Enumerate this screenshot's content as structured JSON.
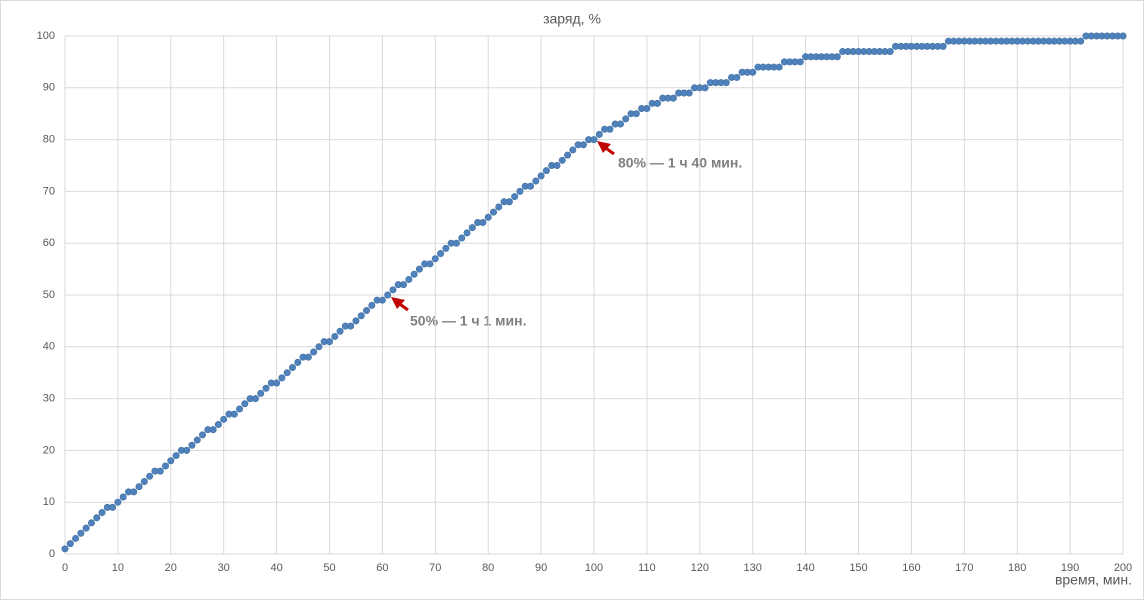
{
  "chart_data": {
    "type": "scatter",
    "title": "заряд, %",
    "x_label": "время, мин.",
    "annotations": [
      "80% — 1 ч 40 мин.",
      "50% — 1 ч 1 мин."
    ],
    "series": [
      {
        "name": "заряд",
        "color": "#4f81bd",
        "x": [
          0,
          1,
          2,
          3,
          4,
          5,
          6,
          7,
          8,
          9,
          10,
          11,
          12,
          13,
          14,
          15,
          16,
          17,
          18,
          19,
          20,
          21,
          22,
          23,
          24,
          25,
          26,
          27,
          28,
          29,
          30,
          31,
          32,
          33,
          34,
          35,
          36,
          37,
          38,
          39,
          40,
          41,
          42,
          43,
          44,
          45,
          46,
          47,
          48,
          49,
          50,
          51,
          52,
          53,
          54,
          55,
          56,
          57,
          58,
          59,
          60,
          61,
          62,
          63,
          64,
          65,
          66,
          67,
          68,
          69,
          70,
          71,
          72,
          73,
          74,
          75,
          76,
          77,
          78,
          79,
          80,
          81,
          82,
          83,
          84,
          85,
          86,
          87,
          88,
          89,
          90,
          91,
          92,
          93,
          94,
          95,
          96,
          97,
          98,
          99,
          100,
          101,
          102,
          103,
          104,
          105,
          106,
          107,
          108,
          109,
          110,
          111,
          112,
          113,
          114,
          115,
          116,
          117,
          118,
          119,
          120,
          121,
          122,
          123,
          124,
          125,
          126,
          127,
          128,
          129,
          130,
          131,
          132,
          133,
          134,
          135,
          136,
          137,
          138,
          139,
          140,
          141,
          142,
          143,
          144,
          145,
          146,
          147,
          148,
          149,
          150,
          151,
          152,
          153,
          154,
          155,
          156,
          157,
          158,
          159,
          160,
          161,
          162,
          163,
          164,
          165,
          166,
          167,
          168,
          169,
          170,
          171,
          172,
          173,
          174,
          175,
          176,
          177,
          178,
          179,
          180,
          181,
          182,
          183,
          184,
          185,
          186,
          187,
          188,
          189,
          190,
          191,
          192,
          193,
          194,
          195,
          196,
          197,
          198,
          199,
          200
        ],
        "values": [
          1,
          2,
          3,
          4,
          5,
          6,
          7,
          8,
          9,
          9,
          10,
          11,
          12,
          12,
          13,
          14,
          15,
          16,
          16,
          17,
          18,
          19,
          20,
          20,
          21,
          22,
          23,
          24,
          24,
          25,
          26,
          27,
          27,
          28,
          29,
          30,
          30,
          31,
          32,
          33,
          33,
          34,
          35,
          36,
          37,
          38,
          38,
          39,
          40,
          41,
          41,
          42,
          43,
          44,
          44,
          45,
          46,
          47,
          48,
          49,
          49,
          50,
          51,
          52,
          52,
          53,
          54,
          55,
          56,
          56,
          57,
          58,
          59,
          60,
          60,
          61,
          62,
          63,
          64,
          64,
          65,
          66,
          67,
          68,
          68,
          69,
          70,
          71,
          71,
          72,
          73,
          74,
          75,
          75,
          76,
          77,
          78,
          79,
          79,
          80,
          80,
          81,
          82,
          82,
          83,
          83,
          84,
          85,
          85,
          86,
          86,
          87,
          87,
          88,
          88,
          88,
          89,
          89,
          89,
          90,
          90,
          90,
          91,
          91,
          91,
          91,
          92,
          92,
          93,
          93,
          93,
          94,
          94,
          94,
          94,
          94,
          95,
          95,
          95,
          95,
          96,
          96,
          96,
          96,
          96,
          96,
          96,
          97,
          97,
          97,
          97,
          97,
          97,
          97,
          97,
          97,
          97,
          98,
          98,
          98,
          98,
          98,
          98,
          98,
          98,
          98,
          98,
          99,
          99,
          99,
          99,
          99,
          99,
          99,
          99,
          99,
          99,
          99,
          99,
          99,
          99,
          99,
          99,
          99,
          99,
          99,
          99,
          99,
          99,
          99,
          99,
          99,
          99,
          100,
          100,
          100,
          100,
          100,
          100,
          100,
          100
        ]
      }
    ],
    "xlim": [
      0,
      200
    ],
    "xticks": [
      0,
      10,
      20,
      30,
      40,
      50,
      60,
      70,
      80,
      90,
      100,
      110,
      120,
      130,
      140,
      150,
      160,
      170,
      180,
      190,
      200
    ],
    "ylim": [
      0,
      100
    ],
    "yticks": [
      0,
      10,
      20,
      30,
      40,
      50,
      60,
      70,
      80,
      90,
      100
    ],
    "grid": true
  }
}
